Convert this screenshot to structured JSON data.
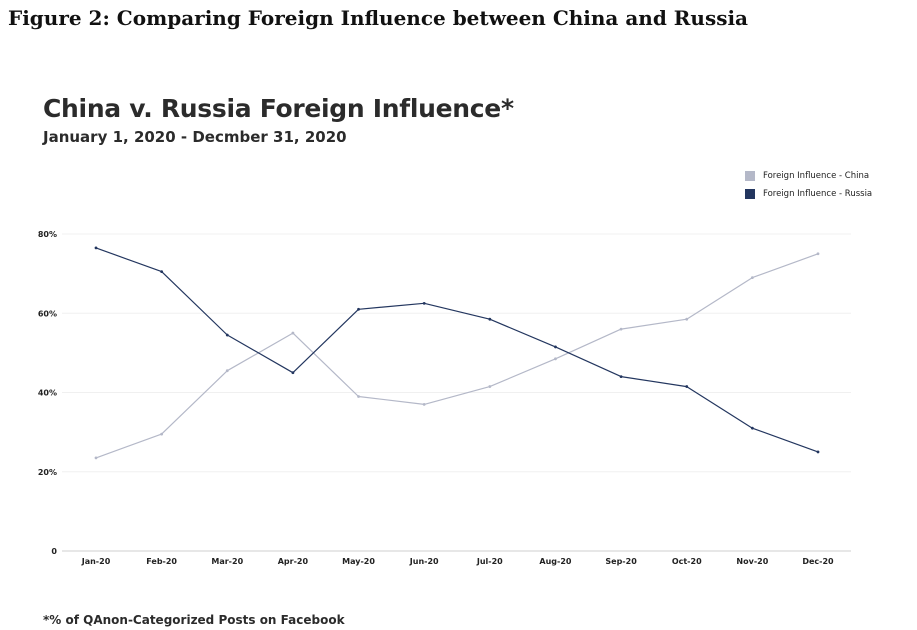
{
  "figure": {
    "caption": "Figure 2: Comparing Foreign Influence between China and Russia",
    "footnote": "*% of QAnon-Categorized Posts on Facebook"
  },
  "chart_data": {
    "type": "line",
    "title": "China v. Russia Foreign Influence*",
    "subtitle": "January 1, 2020 - Decmber 31, 2020",
    "xlabel": "",
    "ylabel": "",
    "categories": [
      "Jan-20",
      "Feb-20",
      "Mar-20",
      "Apr-20",
      "May-20",
      "Jun-20",
      "Jul-20",
      "Aug-20",
      "Sep-20",
      "Oct-20",
      "Nov-20",
      "Dec-20"
    ],
    "series": [
      {
        "name": "Foreign Influence - China",
        "color": "#b4b8c8",
        "values": [
          23.5,
          29.5,
          45.5,
          55.0,
          39.0,
          37.0,
          41.5,
          48.5,
          56.0,
          58.5,
          69.0,
          75.0
        ]
      },
      {
        "name": "Foreign Influence - Russia",
        "color": "#23365f",
        "values": [
          76.5,
          70.5,
          54.5,
          45.0,
          61.0,
          62.5,
          58.5,
          51.5,
          44.0,
          41.5,
          31.0,
          25.0
        ]
      }
    ],
    "ylim": [
      0,
      80
    ],
    "yticks": [
      0,
      20,
      40,
      60,
      80
    ],
    "ytick_labels": [
      "0",
      "20%",
      "40%",
      "60%",
      "80%"
    ],
    "grid": true,
    "legend_position": "top-right"
  }
}
